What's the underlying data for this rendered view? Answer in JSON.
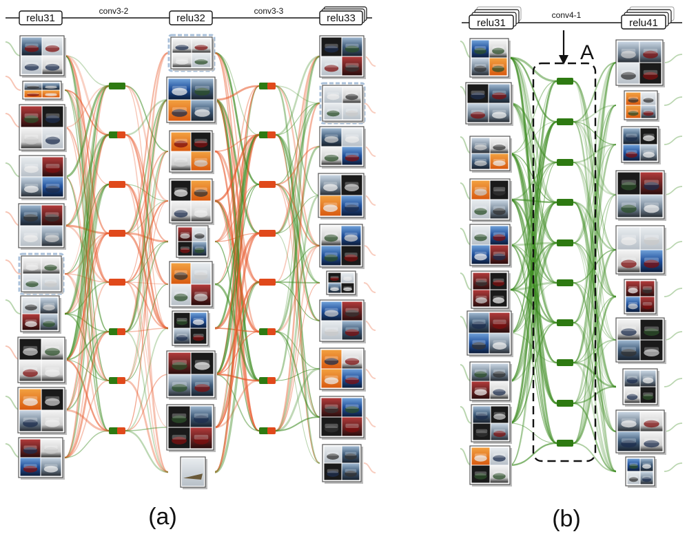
{
  "panel_a": {
    "caption": "(a)",
    "layers": [
      {
        "label": "relu31"
      },
      {
        "label": "relu32"
      },
      {
        "label": "relu33"
      }
    ],
    "connections": [
      {
        "label": "conv3-2"
      },
      {
        "label": "conv3-3"
      }
    ],
    "node_column_1_count": 8,
    "node_column_2_count": 8
  },
  "panel_b": {
    "caption": "(b)",
    "layers": [
      {
        "label": "relu31"
      },
      {
        "label": "relu41"
      }
    ],
    "connections": [
      {
        "label": "conv4-1"
      }
    ],
    "annotation": "A",
    "node_column_count": 10
  },
  "colors": {
    "excitatory_edge": "#3a8a1e",
    "inhibitory_edge": "#e8582a",
    "node_green": "#2e7a12",
    "node_orange": "#e0491b",
    "highlight_box": "#a8bfd8"
  }
}
